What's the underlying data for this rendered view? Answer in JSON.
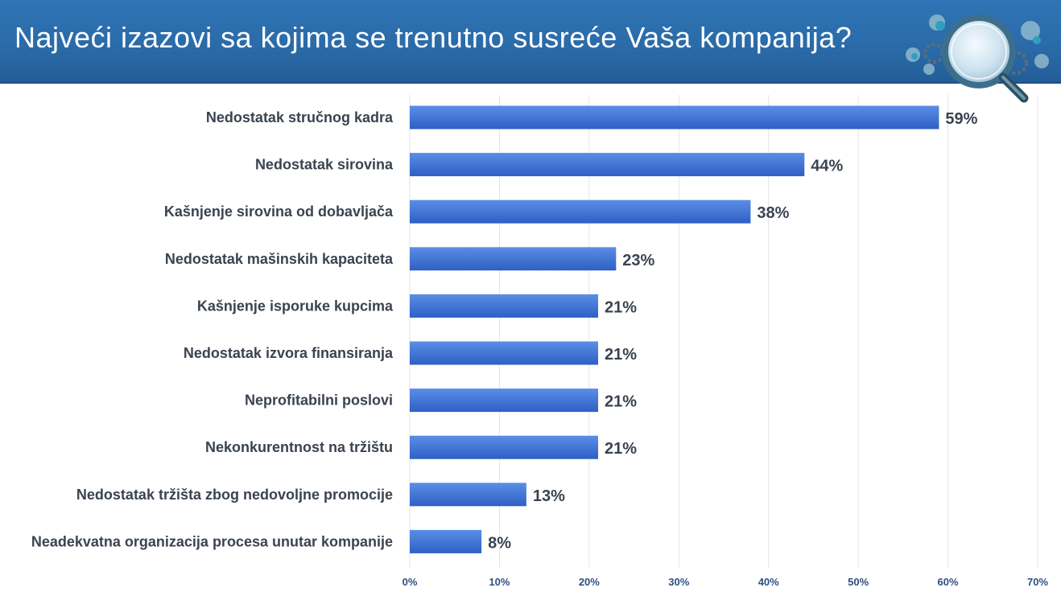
{
  "header": {
    "title": "Najveći izazovi sa kojima se trenutno susreće Vaša kompanija?",
    "logo_icon": "magnifier-gears-icon"
  },
  "colors": {
    "header_bg": "#2f74b5",
    "bar_fill_top": "#5b8ee6",
    "bar_fill_bottom": "#2e5fc4",
    "gridline": "#e3e3e3",
    "label_text": "#3a4350",
    "tick_text": "#2d4f80"
  },
  "chart_data": {
    "type": "bar",
    "orientation": "horizontal",
    "categories": [
      "Nedostatak stručnog kadra",
      "Nedostatak sirovina",
      "Kašnjenje sirovina od dobavljača",
      "Nedostatak mašinskih kapaciteta",
      "Kašnjenje isporuke kupcima",
      "Nedostatak izvora finansiranja",
      "Neprofitabilni poslovi",
      "Nekonkurentnost na tržištu",
      "Nedostatak tržišta zbog nedovoljne promocije",
      "Neadekvatna organizacija procesa unutar kompanije"
    ],
    "values": [
      59,
      44,
      38,
      23,
      21,
      21,
      21,
      21,
      13,
      8
    ],
    "value_labels": [
      "59%",
      "44%",
      "38%",
      "23%",
      "21%",
      "21%",
      "21%",
      "21%",
      "13%",
      "8%"
    ],
    "x_ticks": [
      "0%",
      "10%",
      "20%",
      "30%",
      "40%",
      "50%",
      "60%",
      "70%"
    ],
    "xlim": [
      0,
      70
    ],
    "grid": true,
    "legend": "none"
  }
}
